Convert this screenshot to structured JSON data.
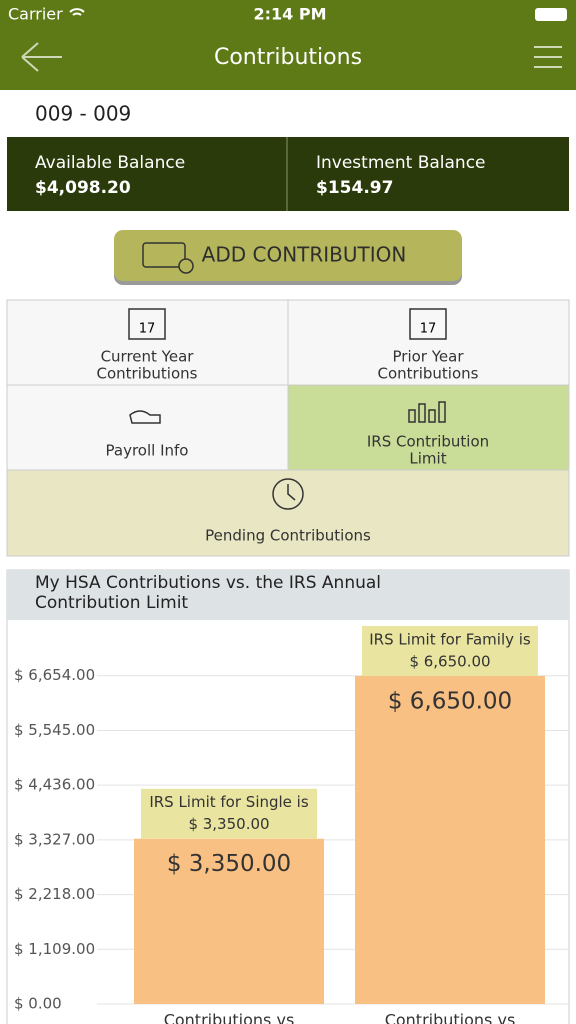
{
  "status_bar": {
    "carrier": "Carrier",
    "time": "2:14 PM"
  },
  "nav": {
    "title": "Contributions"
  },
  "account": "009 - 009",
  "balances": [
    {
      "label": "Available Balance",
      "amount": "$4,098.20"
    },
    {
      "label": "Investment Balance",
      "amount": "$154.97"
    }
  ],
  "add_button": "ADD CONTRIBUTION",
  "tiles": [
    {
      "lines": [
        "Current Year",
        "Contributions"
      ],
      "icon_text": "17"
    },
    {
      "lines": [
        "Prior Year",
        "Contributions"
      ],
      "icon_text": "17"
    },
    {
      "lines": [
        "Payroll Info"
      ]
    },
    {
      "lines": [
        "IRS Contribution",
        "Limit"
      ]
    },
    {
      "lines": [
        "Pending Contributions"
      ]
    }
  ],
  "chart_data": {
    "type": "bar",
    "title": [
      "My HSA Contributions vs. the IRS Annual",
      "Contribution Limit"
    ],
    "categories": [
      "Contributions vs",
      "Contributions vs"
    ],
    "values": [
      3350,
      6650
    ],
    "value_labels": [
      "$ 3,350.00",
      "$ 6,650.00"
    ],
    "annotations": [
      [
        "IRS Limit for Single is",
        "$ 3,350.00"
      ],
      [
        "IRS Limit for Family is",
        "$ 6,650.00"
      ]
    ],
    "color": "#f9c083",
    "annotation_color": "#e9e4a0",
    "ylim": [
      0,
      7500
    ],
    "yticks": [
      {
        "value": 0,
        "label": "$ 0.00"
      },
      {
        "value": 1109,
        "label": "$ 1,109.00"
      },
      {
        "value": 2218,
        "label": "$ 2,218.00"
      },
      {
        "value": 3327,
        "label": "$ 3,327.00"
      },
      {
        "value": 4436,
        "label": "$ 4,436.00"
      },
      {
        "value": 5545,
        "label": "$ 5,545.00"
      },
      {
        "value": 6654,
        "label": "$ 6,654.00"
      }
    ],
    "grid": true
  }
}
